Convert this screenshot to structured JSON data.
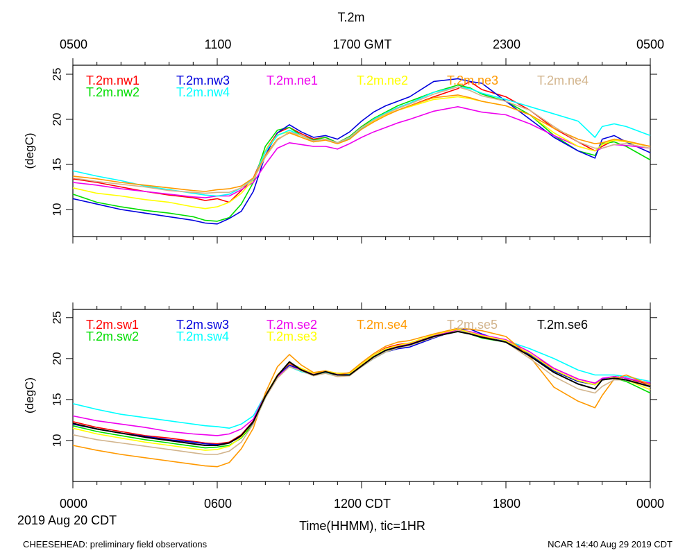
{
  "title": "T.2m",
  "top_axis_labels": [
    "0500",
    "1100",
    "1700 GMT",
    "2300",
    "0500"
  ],
  "bottom_axis_labels": [
    "0000",
    "0600",
    "1200 CDT",
    "1800",
    "0000"
  ],
  "date_label": "2019 Aug 20 CDT",
  "xlabel": "Time(HHMM), tic=1HR",
  "footer_left": "CHEESEHEAD: preliminary field observations",
  "footer_right": "NCAR 14:40 Aug 29 2019 CDT",
  "chart_data": [
    {
      "type": "line",
      "ylabel": "(degC)",
      "ylim": [
        7,
        26
      ],
      "yticks": [
        10,
        15,
        20,
        25
      ],
      "xlim": [
        0,
        24
      ],
      "grid": false,
      "legend": "top-left, inside",
      "x_hours": [
        0,
        1,
        2,
        3,
        4,
        5,
        5.5,
        6,
        6.5,
        7,
        7.5,
        8,
        8.5,
        9,
        9.5,
        10,
        10.5,
        11,
        11.5,
        12,
        12.5,
        13,
        13.5,
        14,
        15,
        16,
        16.5,
        17,
        18,
        19,
        20,
        21,
        21.7,
        22,
        22.5,
        23,
        24
      ],
      "series": [
        {
          "name": "T.2m.nw1",
          "color": "#ff0000",
          "values": [
            13.4,
            13.0,
            12.5,
            12.0,
            11.6,
            11.3,
            11.0,
            11.2,
            10.8,
            12.1,
            13.5,
            16.5,
            18.5,
            19.1,
            18.4,
            17.8,
            18.0,
            17.4,
            18.0,
            19.0,
            19.8,
            20.5,
            21.0,
            21.5,
            22.5,
            23.4,
            24.2,
            23.3,
            22.5,
            21.0,
            19.0,
            17.5,
            16.5,
            17.0,
            17.7,
            17.5,
            17.0
          ]
        },
        {
          "name": "T.2m.nw2",
          "color": "#00dd00",
          "values": [
            11.7,
            10.8,
            10.3,
            9.9,
            9.6,
            9.2,
            8.8,
            8.7,
            9.1,
            10.6,
            13.0,
            17.0,
            18.8,
            19.1,
            18.2,
            17.7,
            18.0,
            17.4,
            18.1,
            19.2,
            20.1,
            20.8,
            21.5,
            22.0,
            23.0,
            23.8,
            23.5,
            22.8,
            22.0,
            20.5,
            18.2,
            16.5,
            16.0,
            17.3,
            17.5,
            17.0,
            15.5
          ]
        },
        {
          "name": "T.2m.nw3",
          "color": "#0000dd",
          "values": [
            11.2,
            10.6,
            10.0,
            9.6,
            9.2,
            8.8,
            8.5,
            8.4,
            9.0,
            9.8,
            12.0,
            16.0,
            18.5,
            19.4,
            18.6,
            18.0,
            18.2,
            17.8,
            18.6,
            19.8,
            20.8,
            21.5,
            22.0,
            22.5,
            24.2,
            24.5,
            24.2,
            24.0,
            22.0,
            20.0,
            18.0,
            16.5,
            15.7,
            17.8,
            18.2,
            17.5,
            16.3
          ]
        },
        {
          "name": "T.2m.ne1",
          "color": "#ee00ee",
          "values": [
            13.0,
            12.7,
            12.3,
            12.0,
            11.7,
            11.4,
            11.3,
            11.5,
            11.5,
            12.2,
            13.0,
            15.0,
            16.8,
            17.4,
            17.2,
            17.0,
            17.0,
            16.7,
            17.3,
            18.0,
            18.6,
            19.1,
            19.6,
            20.0,
            20.9,
            21.4,
            21.1,
            20.8,
            20.5,
            19.5,
            18.2,
            17.0,
            16.5,
            16.8,
            17.2,
            17.1,
            16.8
          ]
        },
        {
          "name": "T.2m.ne2",
          "color": "#ffff00",
          "values": [
            12.4,
            11.8,
            11.5,
            11.1,
            10.8,
            10.3,
            10.1,
            10.3,
            10.8,
            11.8,
            13.3,
            16.5,
            18.3,
            18.6,
            18.0,
            17.5,
            17.7,
            17.3,
            17.8,
            19.0,
            19.8,
            20.5,
            21.0,
            21.4,
            22.2,
            22.5,
            22.3,
            22.0,
            21.5,
            20.5,
            18.5,
            17.0,
            16.5,
            17.2,
            17.7,
            17.5,
            17.0
          ]
        },
        {
          "name": "T.2m.nw4",
          "color": "#00ffff",
          "values": [
            14.3,
            13.7,
            13.2,
            12.6,
            12.2,
            11.8,
            11.6,
            11.5,
            11.7,
            12.4,
            13.4,
            16.4,
            18.2,
            18.8,
            18.2,
            17.6,
            17.8,
            17.4,
            17.9,
            19.0,
            20.0,
            20.7,
            21.3,
            21.8,
            23.0,
            23.6,
            23.4,
            22.9,
            22.2,
            21.4,
            20.6,
            19.8,
            18.0,
            19.2,
            19.5,
            19.2,
            18.2
          ]
        },
        {
          "name": "T.2m.ne3",
          "color": "#ff9900",
          "values": [
            13.7,
            13.4,
            13.0,
            12.7,
            12.4,
            12.1,
            12.0,
            12.2,
            12.3,
            12.6,
            13.5,
            16.0,
            17.8,
            18.5,
            18.0,
            17.5,
            17.7,
            17.3,
            17.8,
            18.9,
            19.7,
            20.4,
            21.0,
            21.5,
            22.4,
            22.7,
            22.4,
            22.0,
            21.5,
            20.5,
            19.0,
            17.8,
            17.3,
            17.4,
            17.8,
            17.6,
            17.0
          ]
        },
        {
          "name": "T.2m.ne4",
          "color": "#d2b48c",
          "values": [
            13.5,
            13.1,
            12.8,
            12.5,
            12.1,
            11.9,
            11.8,
            11.9,
            11.9,
            12.4,
            13.3,
            15.8,
            17.7,
            18.6,
            18.2,
            17.6,
            17.8,
            17.4,
            18.0,
            19.1,
            19.9,
            20.6,
            21.2,
            21.7,
            22.8,
            23.6,
            23.2,
            22.6,
            22.0,
            21.0,
            19.2,
            17.5,
            16.8,
            16.8,
            17.2,
            17.3,
            16.8
          ]
        }
      ]
    },
    {
      "type": "line",
      "ylabel": "(degC)",
      "ylim": [
        5,
        26
      ],
      "yticks": [
        10,
        15,
        20,
        25
      ],
      "xlim": [
        0,
        24
      ],
      "grid": false,
      "legend": "top-left, inside",
      "x_hours": [
        0,
        1,
        2,
        3,
        4,
        5,
        5.5,
        6,
        6.5,
        7,
        7.5,
        8,
        8.5,
        9,
        9.5,
        10,
        10.5,
        11,
        11.5,
        12,
        12.5,
        13,
        13.5,
        14,
        15,
        16,
        16.5,
        17,
        18,
        19,
        20,
        21,
        21.7,
        22,
        22.5,
        23,
        24
      ],
      "series": [
        {
          "name": "T.2m.sw1",
          "color": "#ff0000",
          "values": [
            12.3,
            11.6,
            11.1,
            10.6,
            10.3,
            9.9,
            9.7,
            9.6,
            9.8,
            10.7,
            12.4,
            15.5,
            18.0,
            19.4,
            18.7,
            18.1,
            18.5,
            18.2,
            18.2,
            19.3,
            20.4,
            21.3,
            21.7,
            21.9,
            22.8,
            23.6,
            23.2,
            22.7,
            22.2,
            20.5,
            18.8,
            17.5,
            17.0,
            17.5,
            17.8,
            17.6,
            16.8
          ]
        },
        {
          "name": "T.2m.sw2",
          "color": "#00dd00",
          "values": [
            11.8,
            11.1,
            10.6,
            10.1,
            9.7,
            9.3,
            9.1,
            9.2,
            9.4,
            10.3,
            12.0,
            15.2,
            17.8,
            19.2,
            18.6,
            18.0,
            18.4,
            18.0,
            18.1,
            19.1,
            20.2,
            21.0,
            21.5,
            21.8,
            22.7,
            23.4,
            23.0,
            22.5,
            22.0,
            20.3,
            18.5,
            17.2,
            16.8,
            17.4,
            17.6,
            17.2,
            15.8
          ]
        },
        {
          "name": "T.2m.sw3",
          "color": "#0000dd",
          "values": [
            12.0,
            11.4,
            10.9,
            10.5,
            10.1,
            9.8,
            9.6,
            9.5,
            9.7,
            10.5,
            12.2,
            15.3,
            17.8,
            19.2,
            18.6,
            18.0,
            18.3,
            18.0,
            18.0,
            19.0,
            20.0,
            20.8,
            21.2,
            21.4,
            22.5,
            23.5,
            23.6,
            23.0,
            22.0,
            20.5,
            18.5,
            17.2,
            16.8,
            17.5,
            17.8,
            17.6,
            17.0
          ]
        },
        {
          "name": "T.2m.sw4",
          "color": "#00ffff",
          "values": [
            14.5,
            13.8,
            13.2,
            12.8,
            12.4,
            12.0,
            11.8,
            11.7,
            11.5,
            12.0,
            13.0,
            15.6,
            17.8,
            19.0,
            18.4,
            18.0,
            18.3,
            18.0,
            18.1,
            19.0,
            20.0,
            20.8,
            21.3,
            21.7,
            22.7,
            23.4,
            23.2,
            22.8,
            22.2,
            21.2,
            20.0,
            18.6,
            18.0,
            18.0,
            18.0,
            17.8,
            17.2
          ]
        },
        {
          "name": "T.2m.se2",
          "color": "#ee00ee",
          "values": [
            13.0,
            12.4,
            12.0,
            11.6,
            11.1,
            10.8,
            10.7,
            10.6,
            10.8,
            11.4,
            12.6,
            15.6,
            17.8,
            19.0,
            18.6,
            18.1,
            18.4,
            18.1,
            18.2,
            19.2,
            20.2,
            21.0,
            21.5,
            21.8,
            22.8,
            23.5,
            23.3,
            22.9,
            22.3,
            20.8,
            18.8,
            17.5,
            17.0,
            17.6,
            17.8,
            17.6,
            17.0
          ]
        },
        {
          "name": "T.2m.se3",
          "color": "#ffff00",
          "values": [
            11.5,
            10.8,
            10.3,
            9.8,
            9.4,
            9.0,
            8.8,
            8.9,
            9.3,
            10.4,
            12.3,
            15.5,
            18.0,
            19.5,
            18.8,
            18.2,
            18.5,
            18.2,
            18.2,
            19.3,
            20.4,
            21.2,
            21.6,
            21.9,
            22.9,
            23.6,
            23.2,
            22.8,
            22.2,
            20.6,
            18.6,
            17.3,
            16.8,
            17.4,
            17.7,
            17.4,
            16.2
          ]
        },
        {
          "name": "T.2m.se4",
          "color": "#ff9900",
          "values": [
            9.4,
            8.8,
            8.3,
            7.9,
            7.5,
            7.1,
            6.9,
            6.8,
            7.3,
            9.0,
            11.5,
            15.8,
            19.0,
            20.5,
            19.2,
            18.3,
            18.5,
            18.0,
            18.3,
            19.5,
            20.6,
            21.5,
            22.0,
            22.2,
            23.0,
            23.7,
            23.6,
            23.4,
            22.7,
            20.2,
            16.5,
            14.8,
            14.0,
            15.5,
            17.5,
            18.0,
            16.8
          ]
        },
        {
          "name": "T.2m.se5",
          "color": "#d2b48c",
          "values": [
            10.7,
            10.1,
            9.7,
            9.3,
            8.9,
            8.5,
            8.3,
            8.3,
            8.7,
            9.8,
            12.0,
            15.2,
            17.6,
            19.0,
            18.5,
            17.9,
            18.2,
            17.8,
            17.9,
            19.0,
            20.0,
            20.8,
            21.3,
            21.6,
            22.6,
            23.4,
            23.1,
            22.6,
            22.0,
            20.0,
            17.8,
            16.3,
            15.8,
            16.6,
            17.4,
            17.4,
            16.5
          ]
        },
        {
          "name": "T.2m.se6",
          "color": "#000000",
          "values": [
            12.1,
            11.4,
            10.9,
            10.4,
            10.0,
            9.6,
            9.4,
            9.4,
            9.7,
            10.6,
            12.3,
            15.4,
            17.9,
            19.6,
            18.6,
            18.0,
            18.4,
            18.0,
            18.0,
            19.1,
            20.2,
            21.0,
            21.4,
            21.7,
            22.7,
            23.3,
            23.0,
            22.6,
            22.0,
            20.3,
            18.3,
            16.9,
            16.3,
            17.4,
            17.6,
            17.4,
            16.6
          ]
        }
      ]
    }
  ]
}
